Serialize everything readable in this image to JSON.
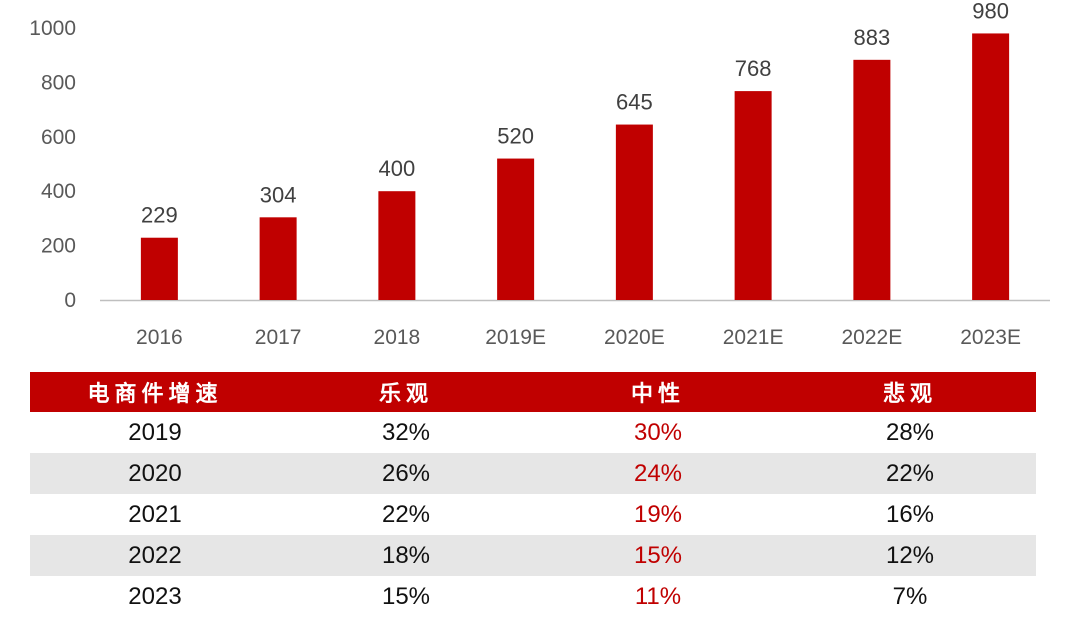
{
  "chart_data": {
    "type": "bar",
    "categories": [
      "2016",
      "2017",
      "2018",
      "2019E",
      "2020E",
      "2021E",
      "2022E",
      "2023E"
    ],
    "values": [
      229,
      304,
      400,
      520,
      645,
      768,
      883,
      980
    ],
    "yticks": [
      "0",
      "200",
      "400",
      "600",
      "800",
      "1000"
    ],
    "ylim": [
      0,
      1000
    ],
    "title": "",
    "xlabel": "",
    "ylabel": "",
    "bar_color": "#c00000",
    "grid": false,
    "data_labels": true
  },
  "table": {
    "headers": [
      "电商件增速",
      "乐观",
      "中性",
      "悲观"
    ],
    "rows": [
      [
        "2019",
        "32%",
        "30%",
        "28%"
      ],
      [
        "2020",
        "26%",
        "24%",
        "22%"
      ],
      [
        "2021",
        "22%",
        "19%",
        "16%"
      ],
      [
        "2022",
        "18%",
        "15%",
        "12%"
      ],
      [
        "2023",
        "15%",
        "11%",
        "7%"
      ]
    ],
    "header_bg": "#c00000",
    "neutral_color": "#c00000",
    "stripe_color": "#e6e6e6"
  }
}
